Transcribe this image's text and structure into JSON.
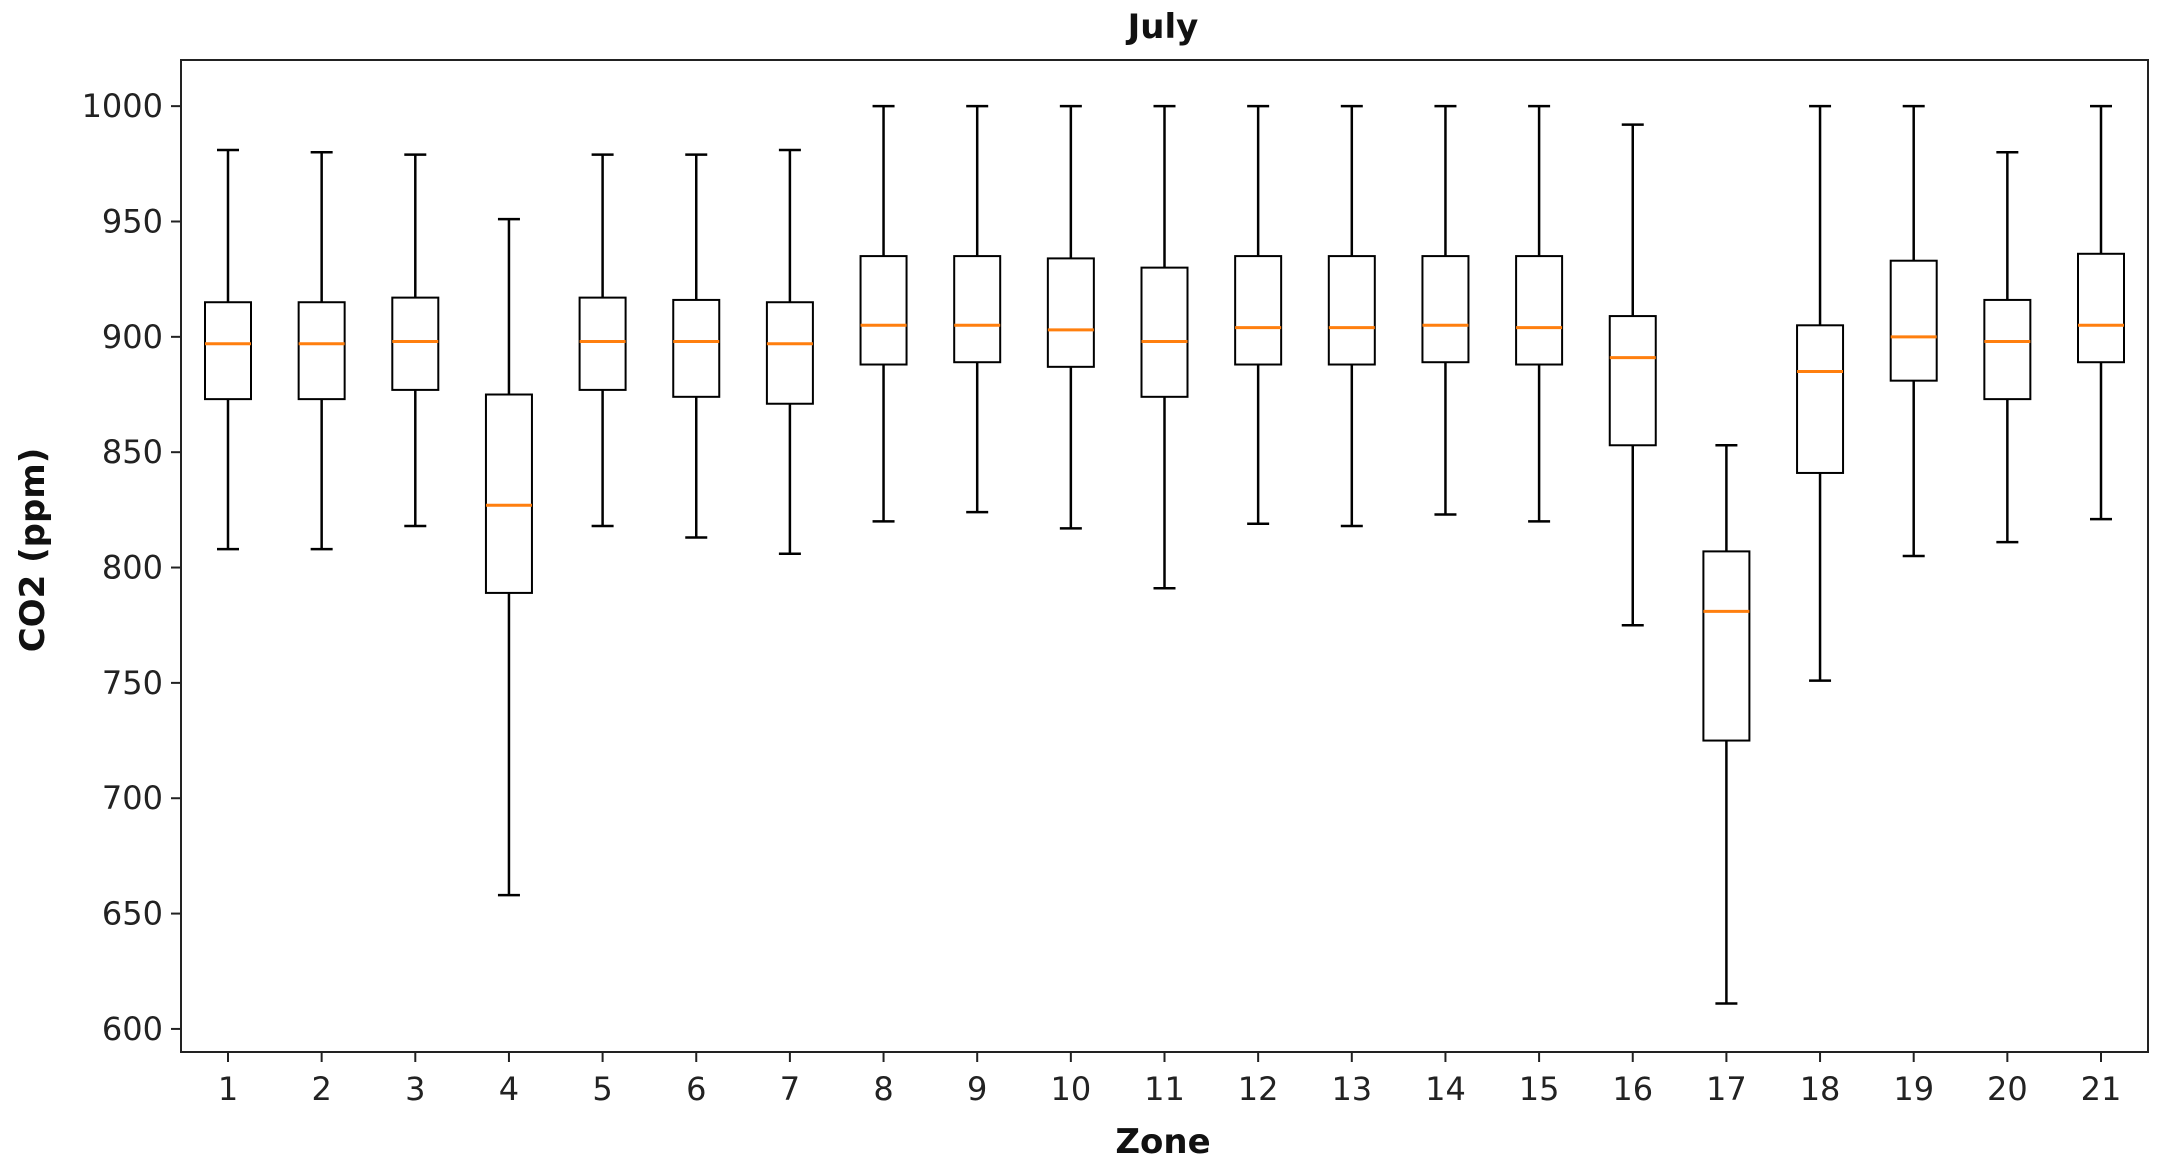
{
  "chart_data": {
    "type": "boxplot",
    "title": "July",
    "xlabel": "Zone",
    "ylabel": "CO2 (ppm)",
    "ylim": [
      590,
      1020
    ],
    "yticks": [
      600,
      650,
      700,
      750,
      800,
      850,
      900,
      950,
      1000
    ],
    "grid": false,
    "colors": {
      "box": "#000000",
      "median": "#ff7f0e"
    },
    "categories": [
      "1",
      "2",
      "3",
      "4",
      "5",
      "6",
      "7",
      "8",
      "9",
      "10",
      "11",
      "12",
      "13",
      "14",
      "15",
      "16",
      "17",
      "18",
      "19",
      "20",
      "21"
    ],
    "boxes": [
      {
        "whisker_low": 808,
        "q1": 873,
        "median": 897,
        "q3": 915,
        "whisker_high": 981
      },
      {
        "whisker_low": 808,
        "q1": 873,
        "median": 897,
        "q3": 915,
        "whisker_high": 980
      },
      {
        "whisker_low": 818,
        "q1": 877,
        "median": 898,
        "q3": 917,
        "whisker_high": 979
      },
      {
        "whisker_low": 658,
        "q1": 789,
        "median": 827,
        "q3": 875,
        "whisker_high": 951
      },
      {
        "whisker_low": 818,
        "q1": 877,
        "median": 898,
        "q3": 917,
        "whisker_high": 979
      },
      {
        "whisker_low": 813,
        "q1": 874,
        "median": 898,
        "q3": 916,
        "whisker_high": 979
      },
      {
        "whisker_low": 806,
        "q1": 871,
        "median": 897,
        "q3": 915,
        "whisker_high": 981
      },
      {
        "whisker_low": 820,
        "q1": 888,
        "median": 905,
        "q3": 935,
        "whisker_high": 1000
      },
      {
        "whisker_low": 824,
        "q1": 889,
        "median": 905,
        "q3": 935,
        "whisker_high": 1000
      },
      {
        "whisker_low": 817,
        "q1": 887,
        "median": 903,
        "q3": 934,
        "whisker_high": 1000
      },
      {
        "whisker_low": 791,
        "q1": 874,
        "median": 898,
        "q3": 930,
        "whisker_high": 1000
      },
      {
        "whisker_low": 819,
        "q1": 888,
        "median": 904,
        "q3": 935,
        "whisker_high": 1000
      },
      {
        "whisker_low": 818,
        "q1": 888,
        "median": 904,
        "q3": 935,
        "whisker_high": 1000
      },
      {
        "whisker_low": 823,
        "q1": 889,
        "median": 905,
        "q3": 935,
        "whisker_high": 1000
      },
      {
        "whisker_low": 820,
        "q1": 888,
        "median": 904,
        "q3": 935,
        "whisker_high": 1000
      },
      {
        "whisker_low": 775,
        "q1": 853,
        "median": 891,
        "q3": 909,
        "whisker_high": 992
      },
      {
        "whisker_low": 611,
        "q1": 725,
        "median": 781,
        "q3": 807,
        "whisker_high": 853
      },
      {
        "whisker_low": 751,
        "q1": 841,
        "median": 885,
        "q3": 905,
        "whisker_high": 1000
      },
      {
        "whisker_low": 805,
        "q1": 881,
        "median": 900,
        "q3": 933,
        "whisker_high": 1000
      },
      {
        "whisker_low": 811,
        "q1": 873,
        "median": 898,
        "q3": 916,
        "whisker_high": 980
      },
      {
        "whisker_low": 821,
        "q1": 889,
        "median": 905,
        "q3": 936,
        "whisker_high": 1000
      }
    ]
  }
}
